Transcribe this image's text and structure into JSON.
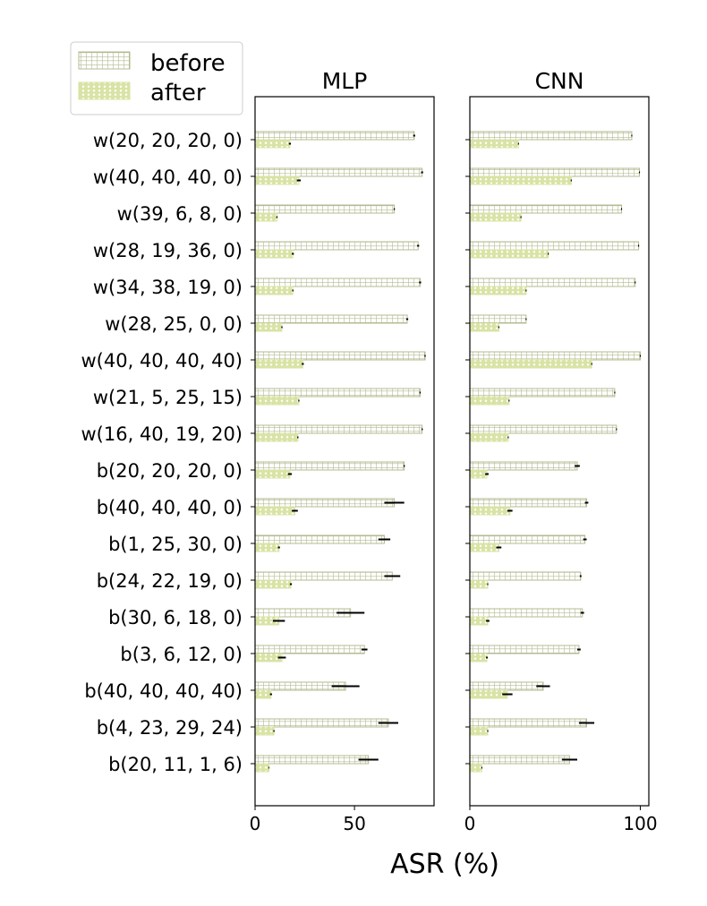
{
  "chart_data": {
    "type": "bar",
    "orientation": "horizontal",
    "xlabel": "ASR (%)",
    "legend": {
      "placement": "top-left",
      "entries": [
        "before",
        "after"
      ]
    },
    "colors": {
      "before": "#b3bb92",
      "after": "#d8e3a4"
    },
    "categories": [
      "w(20, 20, 20, 0)",
      "w(40, 40, 40, 0)",
      "w(39, 6, 8, 0)",
      "w(28, 19, 36, 0)",
      "w(34, 38, 19, 0)",
      "w(28, 25, 0, 0)",
      "w(40, 40, 40, 40)",
      "w(21, 5, 25, 15)",
      "w(16, 40, 19, 20)",
      "b(20, 20, 20, 0)",
      "b(40, 40, 40, 0)",
      "b(1, 25, 30, 0)",
      "b(24, 22, 19, 0)",
      "b(30, 6, 18, 0)",
      "b(3, 6, 12, 0)",
      "b(40, 40, 40, 40)",
      "b(4, 23, 29, 24)",
      "b(20, 11, 1, 6)"
    ],
    "panels": [
      {
        "title": "MLP",
        "xlim": [
          0,
          90
        ],
        "xticks": [
          0,
          50
        ],
        "xticklabels": [
          "0",
          "50"
        ],
        "series": [
          {
            "name": "before",
            "values": [
              80,
              84,
              70,
              82,
              83,
              76.5,
              85.5,
              83,
              84,
              75,
              70,
              65,
              69,
              48,
              55,
              45.5,
              67,
              57
            ],
            "errors": [
              0.5,
              0.5,
              0.3,
              0.5,
              0.5,
              0.5,
              0.3,
              0.3,
              0.3,
              0.3,
              5,
              3,
              4,
              7,
              1.5,
              7,
              5,
              5
            ]
          },
          {
            "name": "after",
            "values": [
              17.5,
              22,
              11,
              19,
              19,
              13.5,
              24,
              22,
              21.5,
              17.5,
              20,
              12,
              18,
              12,
              13.5,
              8,
              9.5,
              7
            ],
            "errors": [
              0.5,
              1,
              0.3,
              0.5,
              0.3,
              0.3,
              0.5,
              0.3,
              0.3,
              1,
              1.5,
              0.5,
              0.5,
              3,
              2,
              0.5,
              0.3,
              0.2
            ]
          }
        ]
      },
      {
        "title": "CNN",
        "xlim": [
          0,
          105
        ],
        "xticks": [
          0,
          100
        ],
        "xticklabels": [
          "0",
          "100"
        ],
        "series": [
          {
            "name": "before",
            "values": [
              95,
              99.5,
              89,
              99,
              97,
              33,
              100,
              85,
              86,
              63,
              68.5,
              67.5,
              65,
              66,
              64,
              43,
              68.5,
              58.5
            ],
            "errors": [
              0.3,
              0.3,
              0.3,
              0.3,
              0.3,
              0.3,
              0.3,
              0.3,
              0.3,
              1.5,
              1,
              1,
              0.5,
              1,
              1,
              4,
              4.5,
              4.5
            ]
          },
          {
            "name": "after",
            "values": [
              28.5,
              59.5,
              30,
              46,
              33,
              17,
              71.5,
              23,
              22.5,
              10,
              23.5,
              17,
              10.5,
              10.5,
              10,
              22,
              10.5,
              7
            ],
            "errors": [
              0.3,
              0.3,
              0.3,
              0.3,
              0.3,
              0.3,
              0.3,
              0.3,
              0.3,
              1,
              1.5,
              1.5,
              0.3,
              1,
              0.5,
              3,
              0.3,
              0.3
            ]
          }
        ]
      }
    ]
  }
}
